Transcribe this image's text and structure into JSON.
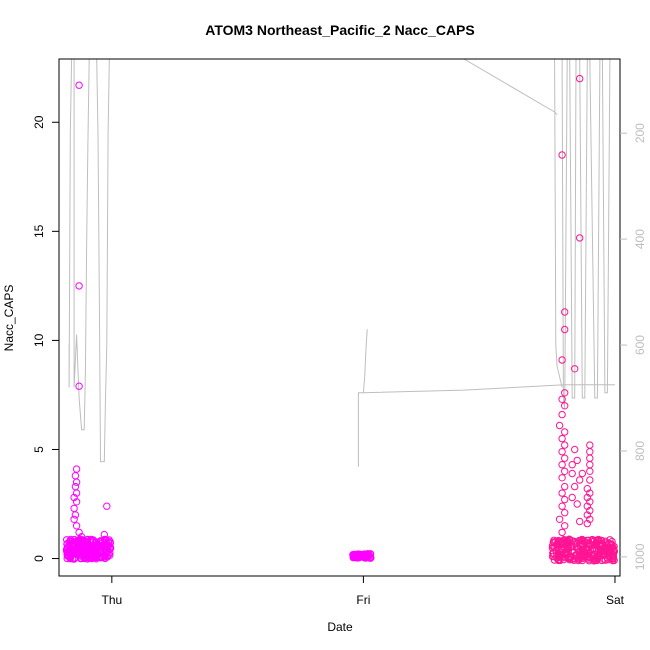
{
  "chart_data": {
    "type": "scatter",
    "title": "ATOM3 Northeast_Pacific_2 Nacc_CAPS",
    "xlabel": "Date",
    "ylabel": "Nacc_CAPS",
    "x_ticks": [
      {
        "label": "Thu",
        "value": 0
      },
      {
        "label": "Fri",
        "value": 1
      },
      {
        "label": "Sat",
        "value": 2
      }
    ],
    "x_range": [
      -0.21,
      2.02
    ],
    "y_range": [
      -0.8,
      22.9
    ],
    "y_ticks": [
      0,
      5,
      10,
      15,
      20
    ],
    "y2_label": "",
    "y2_range": [
      1036,
      60
    ],
    "y2_ticks": [
      200,
      400,
      600,
      800,
      1000
    ],
    "grid": false,
    "colors": {
      "points": "#ff1493",
      "points_alt": "#ff00ff",
      "pressure_line": "#bebebe",
      "axes": "#000000",
      "right_axis": "#bebebe"
    },
    "series": [
      {
        "kind": "points",
        "color_key": "points_alt",
        "segments": [
          {
            "x0": -0.18,
            "x1": 0.0,
            "n": 240,
            "base": 0.25,
            "spread": 0.45
          },
          {
            "x0": 0.955,
            "x1": 1.03,
            "n": 60,
            "base": 0.08,
            "spread": 0.1
          }
        ],
        "points": [
          [
            -0.13,
            21.7
          ],
          [
            -0.13,
            12.5
          ],
          [
            -0.13,
            7.9
          ],
          [
            -0.14,
            4.1
          ],
          [
            -0.145,
            3.8
          ],
          [
            -0.14,
            3.5
          ],
          [
            -0.145,
            3.3
          ],
          [
            -0.14,
            3.0
          ],
          [
            -0.15,
            2.8
          ],
          [
            -0.14,
            2.6
          ],
          [
            -0.15,
            2.3
          ],
          [
            -0.145,
            2.0
          ],
          [
            -0.15,
            1.8
          ],
          [
            -0.14,
            1.5
          ],
          [
            -0.13,
            1.2
          ],
          [
            -0.12,
            1.0
          ],
          [
            -0.02,
            2.4
          ],
          [
            -0.03,
            1.1
          ]
        ]
      },
      {
        "kind": "points",
        "color_key": "points",
        "segments": [
          {
            "x0": 1.75,
            "x1": 2.0,
            "n": 260,
            "base": 0.2,
            "spread": 0.5
          }
        ],
        "points": [
          [
            1.79,
            18.5
          ],
          [
            1.8,
            11.3
          ],
          [
            1.8,
            10.5
          ],
          [
            1.79,
            9.1
          ],
          [
            1.84,
            8.7
          ],
          [
            1.86,
            22.0
          ],
          [
            1.86,
            14.7
          ],
          [
            1.8,
            7.6
          ],
          [
            1.79,
            7.3
          ],
          [
            1.8,
            7.0
          ],
          [
            1.79,
            6.6
          ],
          [
            1.78,
            6.1
          ],
          [
            1.8,
            5.8
          ],
          [
            1.79,
            5.5
          ],
          [
            1.8,
            5.2
          ],
          [
            1.79,
            4.9
          ],
          [
            1.8,
            4.6
          ],
          [
            1.79,
            4.3
          ],
          [
            1.8,
            4.0
          ],
          [
            1.79,
            3.7
          ],
          [
            1.8,
            3.3
          ],
          [
            1.79,
            3.0
          ],
          [
            1.8,
            2.7
          ],
          [
            1.79,
            2.4
          ],
          [
            1.8,
            2.1
          ],
          [
            1.78,
            1.8
          ],
          [
            1.8,
            1.5
          ],
          [
            1.79,
            1.2
          ],
          [
            1.84,
            5.0
          ],
          [
            1.83,
            4.3
          ],
          [
            1.85,
            4.5
          ],
          [
            1.83,
            3.9
          ],
          [
            1.84,
            3.3
          ],
          [
            1.86,
            3.6
          ],
          [
            1.87,
            3.9
          ],
          [
            1.83,
            2.8
          ],
          [
            1.85,
            2.5
          ],
          [
            1.86,
            1.7
          ],
          [
            1.9,
            5.2
          ],
          [
            1.9,
            4.9
          ],
          [
            1.9,
            4.6
          ],
          [
            1.9,
            4.3
          ],
          [
            1.9,
            4.0
          ],
          [
            1.9,
            3.6
          ],
          [
            1.89,
            3.2
          ],
          [
            1.9,
            3.0
          ],
          [
            1.89,
            2.8
          ],
          [
            1.9,
            2.6
          ],
          [
            1.89,
            2.4
          ],
          [
            1.9,
            2.2
          ],
          [
            1.89,
            2.0
          ],
          [
            1.9,
            1.8
          ],
          [
            1.89,
            1.6
          ]
        ]
      },
      {
        "kind": "line",
        "axis": "y2",
        "color_key": "pressure_line",
        "segments": [
          [
            [
              -0.17,
              600
            ],
            [
              -0.17,
              680
            ],
            [
              -0.165,
              200
            ],
            [
              -0.16,
              60
            ]
          ],
          [
            [
              -0.15,
              60
            ],
            [
              -0.15,
              680
            ],
            [
              -0.14,
              580
            ],
            [
              -0.13,
              700
            ],
            [
              -0.12,
              760
            ],
            [
              -0.11,
              760
            ],
            [
              -0.105,
              650
            ],
            [
              -0.1,
              400
            ],
            [
              -0.095,
              220
            ],
            [
              -0.09,
              60
            ]
          ],
          [
            [
              -0.06,
              60
            ],
            [
              -0.055,
              200
            ],
            [
              -0.05,
              500
            ],
            [
              -0.045,
              820
            ],
            [
              -0.03,
              820
            ],
            [
              -0.025,
              700
            ],
            [
              -0.02,
              600
            ],
            [
              -0.015,
              200
            ],
            [
              -0.01,
              60
            ]
          ],
          [
            [
              0.98,
              830
            ],
            [
              0.98,
              690
            ],
            [
              1.0,
              690
            ],
            [
              1.005,
              660
            ],
            [
              1.01,
              610
            ],
            [
              1.015,
              570
            ]
          ],
          [
            [
              1.0,
              690
            ],
            [
              1.4,
              685
            ],
            [
              1.8,
              675
            ],
            [
              2.0,
              675
            ]
          ],
          [
            [
              1.0,
              60
            ],
            [
              1.4,
              60
            ],
            [
              1.76,
              160
            ],
            [
              1.77,
              165
            ]
          ],
          [
            [
              1.76,
              60
            ],
            [
              1.765,
              600
            ],
            [
              1.77,
              640
            ],
            [
              1.79,
              680
            ]
          ],
          [
            [
              1.79,
              60
            ],
            [
              1.795,
              700
            ],
            [
              1.8,
              720
            ],
            [
              1.81,
              60
            ]
          ],
          [
            [
              1.82,
              60
            ],
            [
              1.83,
              700
            ],
            [
              1.84,
              700
            ],
            [
              1.845,
              60
            ]
          ],
          [
            [
              1.86,
              60
            ],
            [
              1.87,
              700
            ],
            [
              1.88,
              700
            ],
            [
              1.89,
              60
            ]
          ],
          [
            [
              1.9,
              60
            ],
            [
              1.92,
              700
            ],
            [
              1.93,
              700
            ],
            [
              1.94,
              60
            ]
          ],
          [
            [
              1.95,
              60
            ],
            [
              1.96,
              690
            ],
            [
              1.97,
              690
            ],
            [
              1.98,
              60
            ]
          ]
        ]
      }
    ]
  }
}
